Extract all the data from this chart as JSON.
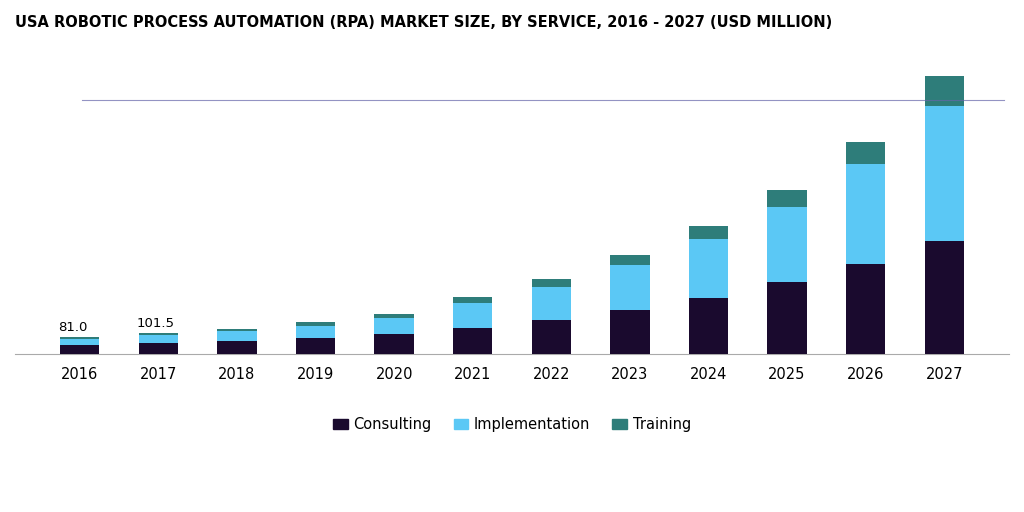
{
  "title": "USA ROBOTIC PROCESS AUTOMATION (RPA) MARKET SIZE, BY SERVICE, 2016 - 2027 (USD MILLION)",
  "years": [
    2016,
    2017,
    2018,
    2019,
    2020,
    2021,
    2022,
    2023,
    2024,
    2025,
    2026,
    2027
  ],
  "consulting": [
    42,
    53,
    62,
    78,
    96,
    125,
    160,
    210,
    270,
    345,
    430,
    540
  ],
  "implementation": [
    30,
    38,
    46,
    58,
    74,
    120,
    160,
    215,
    280,
    360,
    480,
    650
  ],
  "training": [
    9,
    10.5,
    13,
    16,
    20,
    30,
    38,
    50,
    62,
    82,
    105,
    140
  ],
  "annotations": {
    "2016": "81.0",
    "2017": "101.5"
  },
  "color_consulting": "#1a0a2e",
  "color_implementation": "#5bc8f5",
  "color_training": "#2e7d7a",
  "background_color": "#ffffff",
  "title_fontsize": 10.5,
  "bar_width": 0.5,
  "ylim": [
    0,
    1500
  ]
}
